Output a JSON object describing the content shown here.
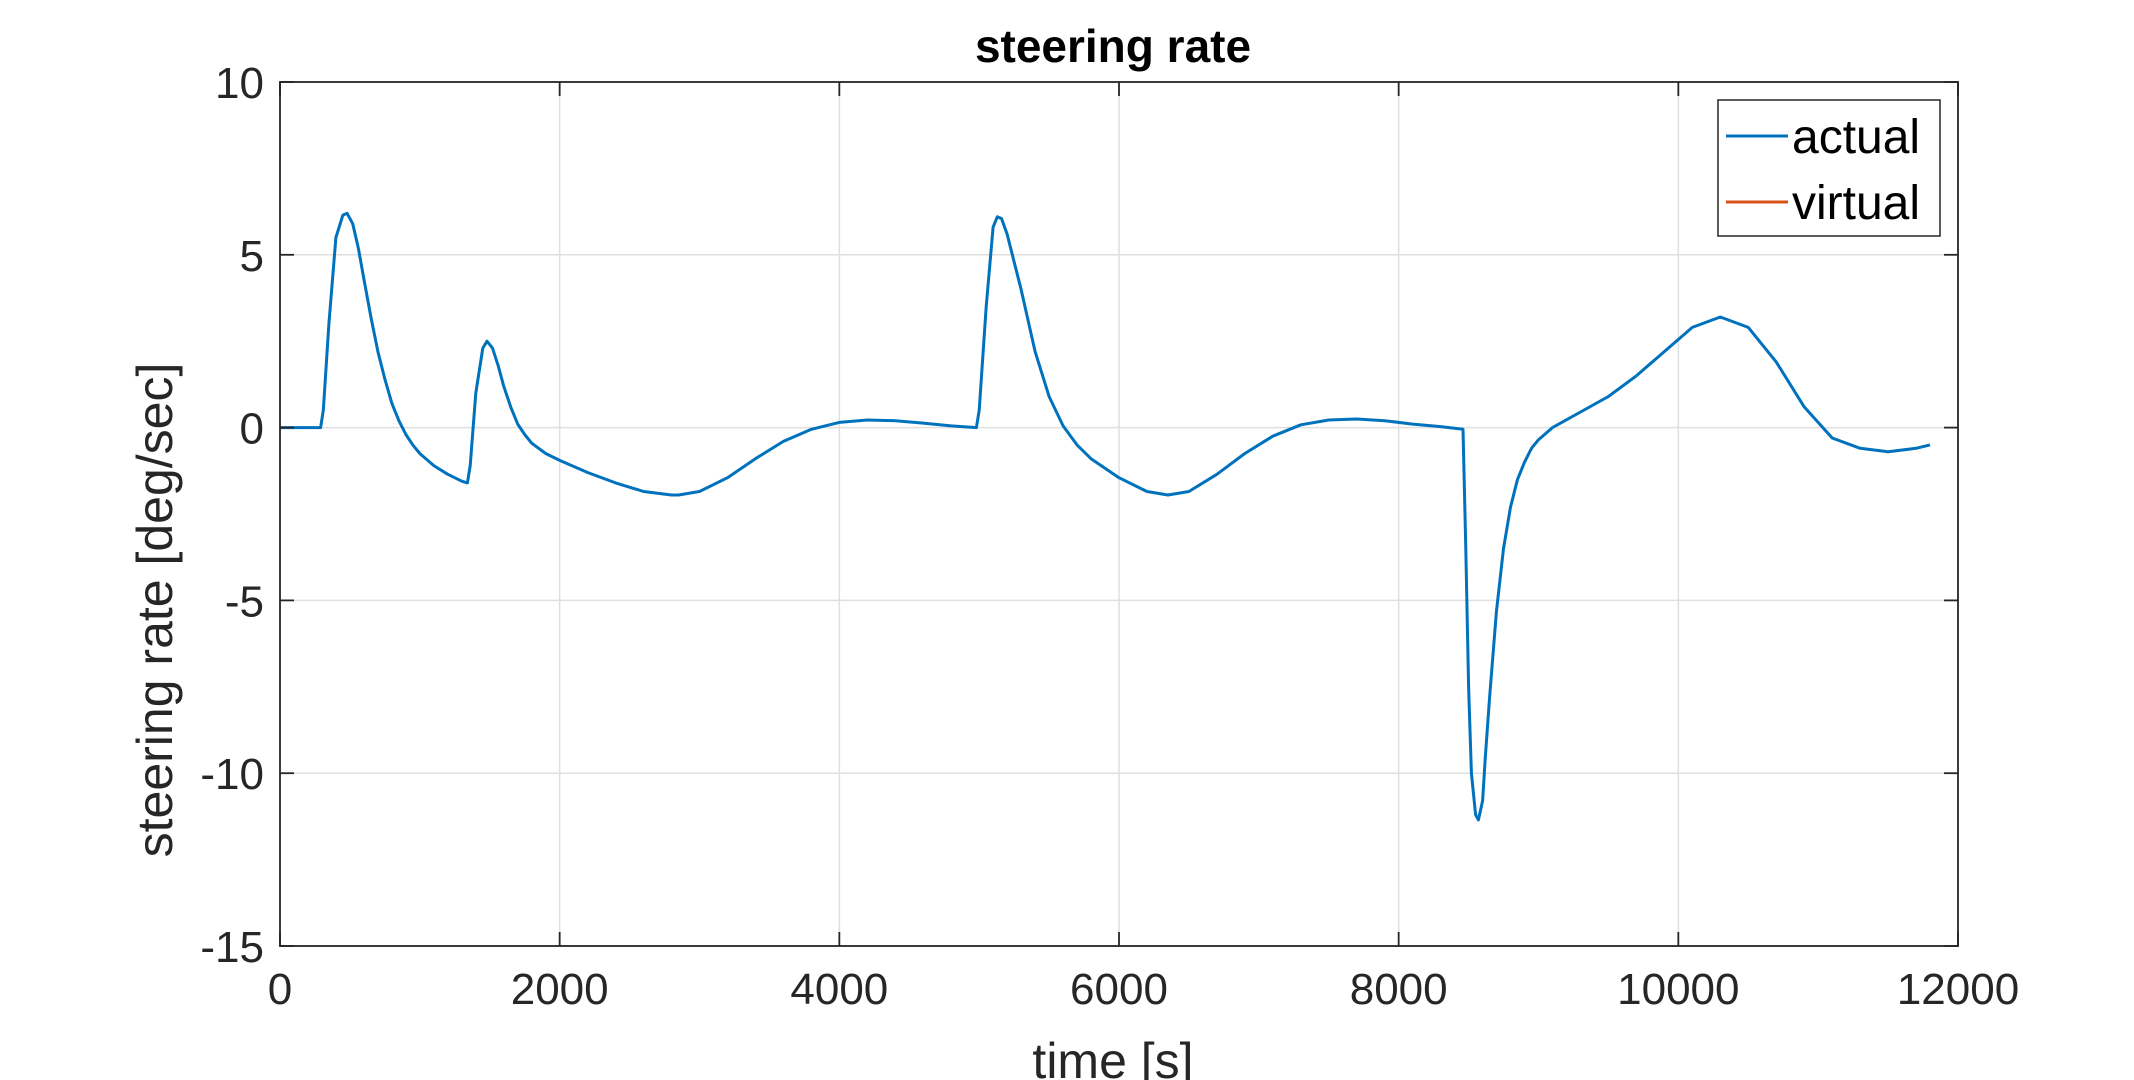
{
  "chart_data": {
    "type": "line",
    "title": "steering rate",
    "xlabel": "time [s]",
    "ylabel": "steering rate [deg/sec]",
    "xlim": [
      0,
      12000
    ],
    "ylim": [
      -15,
      10
    ],
    "xticks": [
      0,
      2000,
      4000,
      6000,
      8000,
      10000,
      12000
    ],
    "yticks": [
      10,
      5,
      0,
      -5,
      -10,
      -15
    ],
    "xtick_labels": [
      "0",
      "2000",
      "4000",
      "6000",
      "8000",
      "10000",
      "12000"
    ],
    "ytick_labels": [
      "10",
      "5",
      "0",
      "-5",
      "-10",
      "-15"
    ],
    "grid": true,
    "legend_position": "top-right",
    "series": [
      {
        "name": "actual",
        "color": "#0072BD",
        "x": [
          0,
          290,
          310,
          350,
          400,
          450,
          480,
          520,
          560,
          600,
          650,
          700,
          750,
          800,
          850,
          900,
          950,
          1000,
          1100,
          1200,
          1300,
          1340,
          1360,
          1400,
          1450,
          1480,
          1520,
          1560,
          1600,
          1650,
          1700,
          1750,
          1800,
          1900,
          2000,
          2200,
          2400,
          2600,
          2800,
          2850,
          3000,
          3200,
          3400,
          3600,
          3800,
          4000,
          4200,
          4400,
          4600,
          4800,
          4980,
          5000,
          5050,
          5100,
          5130,
          5160,
          5200,
          5300,
          5400,
          5500,
          5600,
          5700,
          5800,
          6000,
          6200,
          6350,
          6500,
          6700,
          6900,
          7100,
          7300,
          7500,
          7700,
          7900,
          8100,
          8300,
          8460,
          8480,
          8500,
          8520,
          8550,
          8570,
          8600,
          8620,
          8650,
          8700,
          8750,
          8800,
          8850,
          8900,
          8950,
          9000,
          9100,
          9300,
          9500,
          9700,
          9900,
          10100,
          10300,
          10500,
          10700,
          10900,
          11100,
          11300,
          11500,
          11700,
          11800
        ],
        "y": [
          0,
          0,
          0.5,
          3,
          5.5,
          6.15,
          6.2,
          5.9,
          5.2,
          4.3,
          3.2,
          2.2,
          1.4,
          0.7,
          0.2,
          -0.2,
          -0.5,
          -0.75,
          -1.1,
          -1.35,
          -1.55,
          -1.6,
          -1.1,
          1.0,
          2.3,
          2.5,
          2.3,
          1.8,
          1.2,
          0.6,
          0.1,
          -0.2,
          -0.45,
          -0.75,
          -0.95,
          -1.3,
          -1.6,
          -1.85,
          -1.95,
          -1.95,
          -1.85,
          -1.45,
          -0.9,
          -0.4,
          -0.05,
          0.15,
          0.22,
          0.2,
          0.13,
          0.05,
          0,
          0.5,
          3.5,
          5.8,
          6.1,
          6.05,
          5.6,
          4.0,
          2.2,
          0.9,
          0.05,
          -0.5,
          -0.9,
          -1.45,
          -1.85,
          -1.95,
          -1.85,
          -1.35,
          -0.75,
          -0.25,
          0.08,
          0.22,
          0.25,
          0.2,
          0.1,
          0.03,
          -0.05,
          -3.5,
          -7.5,
          -10.0,
          -11.2,
          -11.35,
          -10.8,
          -9.5,
          -7.8,
          -5.3,
          -3.5,
          -2.3,
          -1.5,
          -1.0,
          -0.6,
          -0.35,
          0.0,
          0.45,
          0.9,
          1.5,
          2.2,
          2.9,
          3.2,
          2.9,
          1.9,
          0.6,
          -0.3,
          -0.6,
          -0.7,
          -0.6,
          -0.5
        ]
      },
      {
        "name": "virtual",
        "color": "#D95319",
        "x": [],
        "y": []
      }
    ]
  }
}
